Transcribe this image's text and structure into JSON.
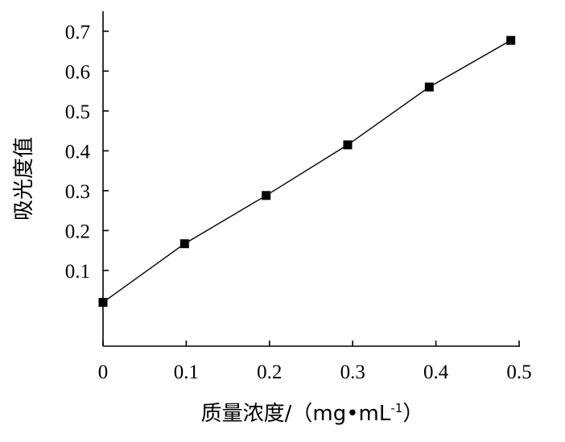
{
  "chart_data": {
    "type": "line",
    "title": "",
    "xlabel": "质量浓度/（mg•mL",
    "xlabel_sup": "-1",
    "xlabel_close": "）",
    "ylabel": "吸光度值",
    "xlim": [
      0,
      0.5
    ],
    "ylim": [
      -0.09,
      0.75
    ],
    "x_ticks": [
      0,
      0.1,
      0.2,
      0.3,
      0.4,
      0.5
    ],
    "x_tick_labels": [
      "0",
      "0.1",
      "0.2",
      "0.3",
      "0.4",
      "0.5"
    ],
    "y_ticks": [
      0.1,
      0.2,
      0.3,
      0.4,
      0.5,
      0.6,
      0.7
    ],
    "y_tick_labels": [
      "0.1",
      "0.2",
      "0.3",
      "0.4",
      "0.5",
      "0.6",
      "0.7"
    ],
    "grid": false,
    "series": [
      {
        "x": [
          0,
          0.098,
          0.196,
          0.294,
          0.392,
          0.49
        ],
        "y": [
          0.02,
          0.167,
          0.288,
          0.415,
          0.56,
          0.677
        ],
        "marker": "square",
        "color": "#000000"
      }
    ]
  }
}
